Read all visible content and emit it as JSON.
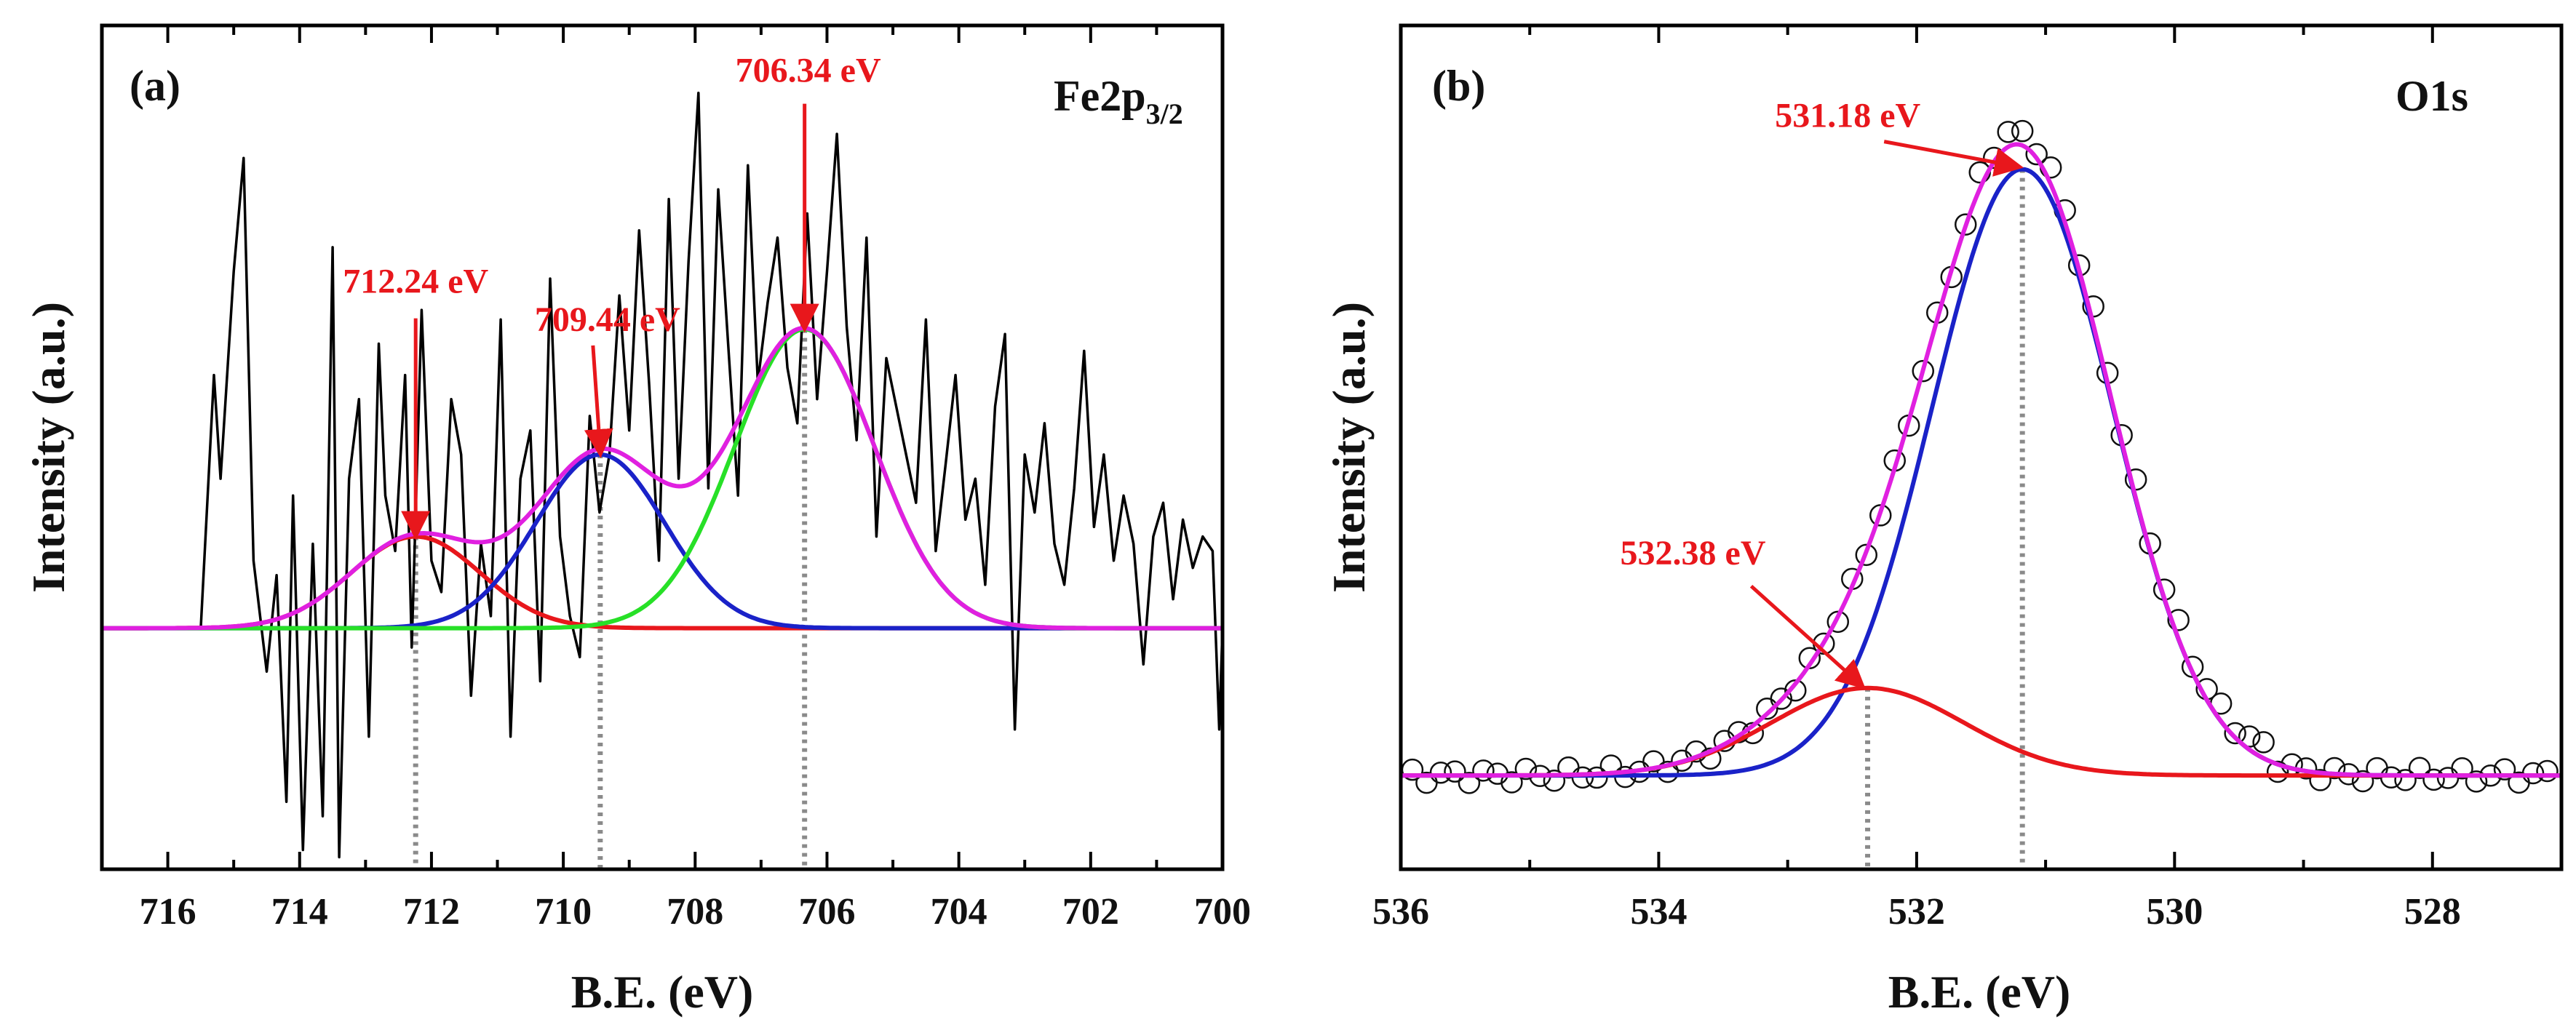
{
  "chart_data": [
    {
      "type": "line",
      "panel": "(a)",
      "title": "Fe2p",
      "title_subscript": "3/2",
      "xlabel": "B.E. (eV)",
      "ylabel": "Intensity (a.u.)",
      "xlim": [
        717,
        700
      ],
      "ylim": [
        -1.0,
        2.5
      ],
      "x_ticks": [
        "716",
        "714",
        "712",
        "710",
        "708",
        "706",
        "704",
        "702",
        "700"
      ],
      "x_tick_values": [
        716,
        714,
        712,
        710,
        708,
        706,
        704,
        702,
        700
      ],
      "peaks": [
        {
          "label": "712.24 eV",
          "center": 712.24,
          "height": 0.38,
          "fwhm": 2.3,
          "color": "#e8171c"
        },
        {
          "label": "709.44 eV",
          "center": 709.44,
          "height": 0.72,
          "fwhm": 2.3,
          "color": "#1a22c8"
        },
        {
          "label": "706.34 eV",
          "center": 706.34,
          "height": 1.24,
          "fwhm": 2.5,
          "color": "#27e027"
        }
      ],
      "envelope_color": "#e020e0",
      "raw_color": "#000000",
      "raw_data": {
        "x": [
          715.5,
          715.3,
          715.2,
          715.0,
          714.85,
          714.7,
          714.5,
          714.35,
          714.2,
          714.1,
          713.95,
          713.8,
          713.65,
          713.5,
          713.4,
          713.25,
          713.1,
          712.95,
          712.8,
          712.7,
          712.55,
          712.4,
          712.3,
          712.15,
          712.0,
          711.85,
          711.7,
          711.55,
          711.4,
          711.25,
          711.1,
          710.95,
          710.8,
          710.65,
          710.5,
          710.35,
          710.2,
          710.05,
          709.9,
          709.75,
          709.6,
          709.45,
          709.3,
          709.15,
          709.0,
          708.85,
          708.7,
          708.55,
          708.4,
          708.25,
          708.1,
          707.95,
          707.8,
          707.65,
          707.5,
          707.35,
          707.2,
          707.05,
          706.9,
          706.75,
          706.6,
          706.45,
          706.3,
          706.15,
          706.0,
          705.85,
          705.7,
          705.55,
          705.4,
          705.25,
          705.1,
          704.95,
          704.8,
          704.65,
          704.5,
          704.35,
          704.2,
          704.05,
          703.9,
          703.75,
          703.6,
          703.45,
          703.3,
          703.15,
          703.0,
          702.85,
          702.7,
          702.55,
          702.4,
          702.25,
          702.1,
          701.95,
          701.8,
          701.65,
          701.5,
          701.35,
          701.2,
          701.05,
          700.9,
          700.75,
          700.6,
          700.45,
          700.3,
          700.15,
          700.05,
          700.0
        ],
        "y": [
          0.0,
          1.05,
          0.62,
          1.48,
          1.95,
          0.28,
          -0.18,
          0.22,
          -0.72,
          0.55,
          -0.92,
          0.35,
          -0.78,
          1.58,
          -0.95,
          0.62,
          0.95,
          -0.45,
          1.18,
          0.55,
          0.32,
          1.05,
          -0.08,
          1.32,
          0.28,
          0.15,
          0.95,
          0.72,
          -0.28,
          0.35,
          0.05,
          1.28,
          -0.45,
          0.62,
          0.82,
          -0.22,
          1.45,
          0.38,
          0.05,
          -0.12,
          0.88,
          0.48,
          0.72,
          1.38,
          0.82,
          1.65,
          1.02,
          0.28,
          1.78,
          0.62,
          1.52,
          2.22,
          0.58,
          1.82,
          1.18,
          0.55,
          1.92,
          1.02,
          1.35,
          1.62,
          1.08,
          0.85,
          1.72,
          0.95,
          1.48,
          2.05,
          1.25,
          0.78,
          1.62,
          0.38,
          1.12,
          0.92,
          0.72,
          0.52,
          1.28,
          0.32,
          0.68,
          1.05,
          0.45,
          0.62,
          0.18,
          0.92,
          1.22,
          -0.42,
          0.72,
          0.48,
          0.85,
          0.35,
          0.18,
          0.58,
          1.15,
          0.42,
          0.72,
          0.28,
          0.55,
          0.35,
          -0.15,
          0.38,
          0.52,
          0.12,
          0.45,
          0.25,
          0.38,
          0.32,
          -0.42,
          0.0
        ]
      }
    },
    {
      "type": "line",
      "panel": "(b)",
      "title": "O1s",
      "xlabel": "B.E. (eV)",
      "ylabel": "Intensity (a.u.)",
      "xlim": [
        536,
        527
      ],
      "ylim": [
        -0.15,
        1.2
      ],
      "x_ticks": [
        "536",
        "534",
        "532",
        "530",
        "528"
      ],
      "x_tick_values": [
        536,
        534,
        532,
        530,
        528
      ],
      "peaks": [
        {
          "label": "531.18 eV",
          "center": 531.18,
          "height": 0.97,
          "fwhm": 1.65,
          "color": "#1a22c8"
        },
        {
          "label": "532.38 eV",
          "center": 532.38,
          "height": 0.14,
          "fwhm": 1.75,
          "color": "#e8171c"
        }
      ],
      "envelope_color": "#e020e0",
      "raw_color": "#000000",
      "raw_marker": "open-circle"
    }
  ]
}
